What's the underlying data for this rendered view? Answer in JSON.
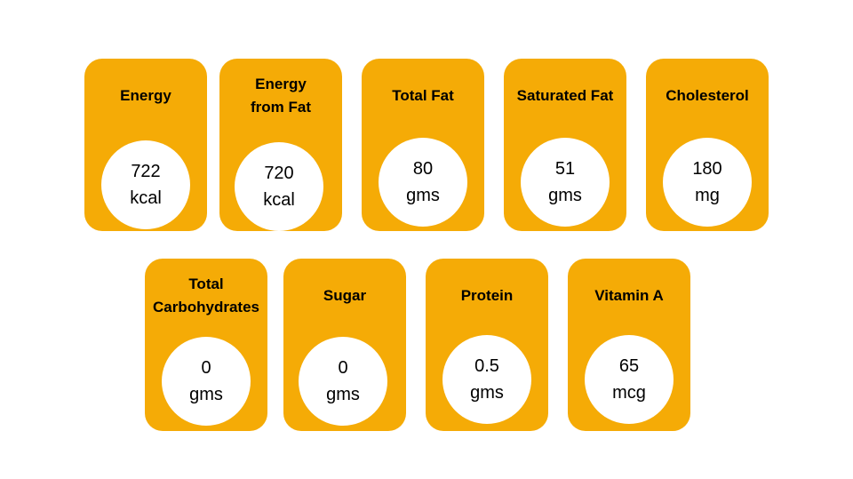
{
  "cards": [
    {
      "title": "Energy",
      "value": "722",
      "unit": "kcal"
    },
    {
      "title": "Energy\nfrom Fat",
      "value": "720",
      "unit": "kcal"
    },
    {
      "title": "Total  Fat",
      "value": "80",
      "unit": "gms"
    },
    {
      "title": "Saturated  Fat",
      "value": "51",
      "unit": "gms"
    },
    {
      "title": "Cholesterol",
      "value": "180",
      "unit": "mg"
    },
    {
      "title": "Total\nCarbohydrates",
      "value": "0",
      "unit": "gms"
    },
    {
      "title": "Sugar",
      "value": "0",
      "unit": "gms"
    },
    {
      "title": "Protein",
      "value": "0.5",
      "unit": "gms"
    },
    {
      "title": "Vitamin  A",
      "value": "65",
      "unit": "mcg"
    }
  ]
}
